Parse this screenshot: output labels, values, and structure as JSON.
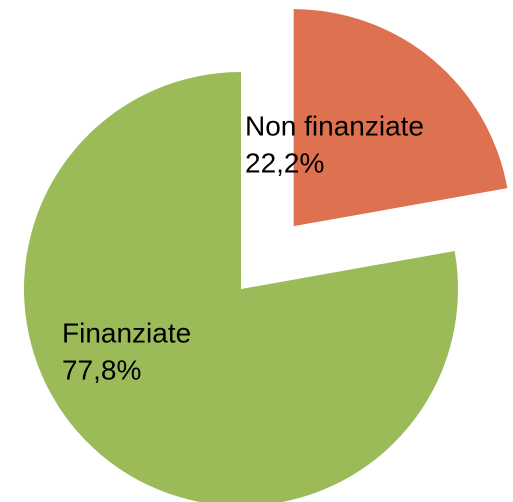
{
  "chart_data": {
    "type": "pie",
    "categories": [
      "Non finanziate",
      "Finanziate"
    ],
    "values": [
      22.2,
      77.8
    ],
    "value_labels": [
      "22,2%",
      "77,8%"
    ],
    "colors": [
      "#dd7150",
      "#9bbb59"
    ],
    "exploded": [
      true,
      false
    ]
  }
}
